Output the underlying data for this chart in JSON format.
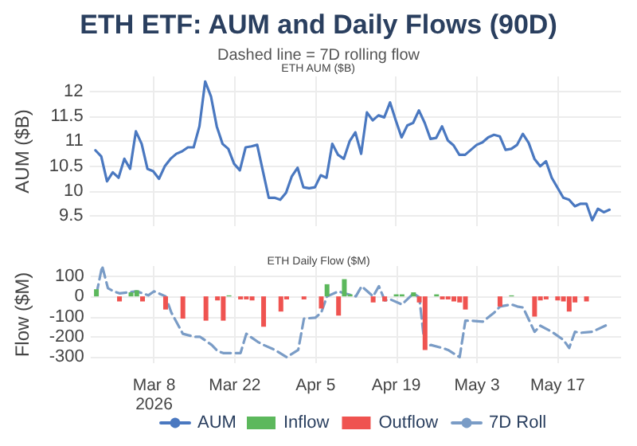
{
  "chart_data": [
    {
      "type": "line",
      "title": "ETH ETF: AUM and Daily Flows (90D)",
      "subtitle": "Dashed line = 7D rolling flow",
      "annotations": [
        "ETH AUM ($B)"
      ],
      "ylabel": "AUM ($B)",
      "x": [
        "2026-02-26",
        "2026-02-27",
        "2026-02-28",
        "2026-03-01",
        "2026-03-02",
        "2026-03-03",
        "2026-03-04",
        "2026-03-05",
        "2026-03-06",
        "2026-03-07",
        "2026-03-08",
        "2026-03-09",
        "2026-03-10",
        "2026-03-11",
        "2026-03-12",
        "2026-03-13",
        "2026-03-14",
        "2026-03-15",
        "2026-03-16",
        "2026-03-17",
        "2026-03-18",
        "2026-03-19",
        "2026-03-20",
        "2026-03-21",
        "2026-03-22",
        "2026-03-23",
        "2026-03-24",
        "2026-03-25",
        "2026-03-26",
        "2026-03-27",
        "2026-03-28",
        "2026-03-29",
        "2026-03-30",
        "2026-03-31",
        "2026-04-01",
        "2026-04-02",
        "2026-04-03",
        "2026-04-04",
        "2026-04-05",
        "2026-04-06",
        "2026-04-07",
        "2026-04-08",
        "2026-04-09",
        "2026-04-10",
        "2026-04-11",
        "2026-04-12",
        "2026-04-13",
        "2026-04-14",
        "2026-04-15",
        "2026-04-16",
        "2026-04-17",
        "2026-04-18",
        "2026-04-19",
        "2026-04-20",
        "2026-04-21",
        "2026-04-22",
        "2026-04-23",
        "2026-04-24",
        "2026-04-25",
        "2026-04-26",
        "2026-04-27",
        "2026-04-28",
        "2026-04-29",
        "2026-04-30",
        "2026-05-01",
        "2026-05-02",
        "2026-05-03",
        "2026-05-04",
        "2026-05-05",
        "2026-05-06",
        "2026-05-07",
        "2026-05-08",
        "2026-05-09",
        "2026-05-10",
        "2026-05-11",
        "2026-05-12",
        "2026-05-13",
        "2026-05-14",
        "2026-05-15",
        "2026-05-16",
        "2026-05-17",
        "2026-05-18",
        "2026-05-19",
        "2026-05-20",
        "2026-05-21",
        "2026-05-22",
        "2026-05-23",
        "2026-05-24",
        "2026-05-25",
        "2026-05-26"
      ],
      "series": [
        {
          "name": "AUM",
          "color": "#4a78c0",
          "values": [
            10.82,
            10.7,
            10.2,
            10.38,
            10.27,
            10.65,
            10.45,
            11.2,
            10.95,
            10.45,
            10.4,
            10.25,
            10.5,
            10.65,
            10.75,
            10.8,
            10.88,
            10.88,
            11.3,
            12.2,
            11.9,
            11.3,
            10.95,
            10.85,
            10.55,
            10.42,
            10.88,
            10.9,
            10.93,
            10.4,
            9.87,
            9.87,
            9.83,
            9.97,
            10.3,
            10.47,
            10.08,
            10.06,
            10.08,
            10.32,
            10.27,
            10.95,
            10.73,
            10.65,
            11.0,
            11.18,
            10.75,
            11.58,
            11.42,
            11.52,
            11.48,
            11.78,
            11.42,
            11.08,
            11.32,
            11.37,
            11.62,
            11.37,
            11.05,
            11.07,
            11.3,
            11.02,
            10.92,
            10.73,
            10.73,
            10.83,
            10.93,
            10.98,
            11.08,
            11.13,
            11.1,
            10.83,
            10.85,
            10.93,
            11.15,
            10.97,
            10.65,
            10.5,
            10.6,
            10.27,
            10.07,
            9.87,
            9.83,
            9.7,
            9.75,
            9.75,
            9.42,
            9.65,
            9.58,
            9.63
          ]
        }
      ],
      "xlim": [
        "2026-02-25",
        "2026-05-28"
      ],
      "xticks": [
        {
          "value": "2026-03-08",
          "label": null
        },
        {
          "value": "2026-03-22",
          "label": null
        },
        {
          "value": "2026-04-05",
          "label": null
        },
        {
          "value": "2026-04-19",
          "label": null
        },
        {
          "value": "2026-05-03",
          "label": null
        },
        {
          "value": "2026-05-17",
          "label": null
        }
      ],
      "ylim": [
        9.3,
        12.3
      ],
      "yticks": [
        9.5,
        10,
        10.5,
        11,
        11.5,
        12
      ],
      "tick_labels": "y",
      "grid": true,
      "legend": "bottom",
      "marker": "none",
      "line_style": "solid"
    },
    {
      "type": "bar",
      "title": "ETH Daily Flow ($M)",
      "ylabel": "Flow ($M)",
      "series": [
        {
          "name": "Inflow",
          "color": "#5cb85c",
          "x": [
            "2026-02-26",
            "2026-03-04",
            "2026-03-05",
            "2026-03-21",
            "2026-04-07",
            "2026-04-10",
            "2026-04-11",
            "2026-04-19",
            "2026-04-20",
            "2026-04-22",
            "2026-04-26",
            "2026-05-09"
          ],
          "values": [
            35,
            20,
            30,
            5,
            60,
            85,
            10,
            10,
            10,
            20,
            10,
            5
          ]
        },
        {
          "name": "Outflow",
          "color": "#ef5350",
          "x": [
            "2026-03-02",
            "2026-03-06",
            "2026-03-10",
            "2026-03-13",
            "2026-03-17",
            "2026-03-19",
            "2026-03-20",
            "2026-03-23",
            "2026-03-24",
            "2026-03-25",
            "2026-03-27",
            "2026-03-30",
            "2026-03-31",
            "2026-04-03",
            "2026-04-06",
            "2026-04-09",
            "2026-04-15",
            "2026-04-17",
            "2026-04-23",
            "2026-04-24",
            "2026-04-27",
            "2026-04-28",
            "2026-04-29",
            "2026-04-30",
            "2026-05-01",
            "2026-05-07",
            "2026-05-13",
            "2026-05-14",
            "2026-05-15",
            "2026-05-17",
            "2026-05-18",
            "2026-05-19",
            "2026-05-20",
            "2026-05-22"
          ],
          "values": [
            -25,
            -25,
            -65,
            -110,
            -120,
            -20,
            -120,
            -15,
            -15,
            -20,
            -150,
            -75,
            -15,
            -15,
            -60,
            -95,
            -30,
            -25,
            -30,
            -265,
            -15,
            -15,
            -25,
            -30,
            -65,
            -50,
            -100,
            -20,
            -15,
            -20,
            -25,
            -75,
            -30,
            -25
          ]
        },
        {
          "name": "7D Roll",
          "type": "line",
          "line_style": "dashed",
          "color": "#7a9cc6",
          "x": [
            "2026-02-26",
            "2026-02-27",
            "2026-02-28",
            "2026-03-01",
            "2026-03-02",
            "2026-03-05",
            "2026-03-07",
            "2026-03-08",
            "2026-03-10",
            "2026-03-11",
            "2026-03-13",
            "2026-03-15",
            "2026-03-16",
            "2026-03-18",
            "2026-03-19",
            "2026-03-20",
            "2026-03-23",
            "2026-03-24",
            "2026-03-26",
            "2026-03-27",
            "2026-03-29",
            "2026-03-31",
            "2026-04-02",
            "2026-04-03",
            "2026-04-05",
            "2026-04-06",
            "2026-04-07",
            "2026-04-09",
            "2026-04-10",
            "2026-04-12",
            "2026-04-13",
            "2026-04-14",
            "2026-04-15",
            "2026-04-16",
            "2026-04-17",
            "2026-04-18",
            "2026-04-20",
            "2026-04-22",
            "2026-04-23",
            "2026-04-24",
            "2026-04-25",
            "2026-04-27",
            "2026-04-28",
            "2026-04-30",
            "2026-05-01",
            "2026-05-02",
            "2026-05-04",
            "2026-05-06",
            "2026-05-07",
            "2026-05-09",
            "2026-05-10",
            "2026-05-11",
            "2026-05-13",
            "2026-05-14",
            "2026-05-16",
            "2026-05-18",
            "2026-05-19",
            "2026-05-20",
            "2026-05-21",
            "2026-05-23",
            "2026-05-26"
          ],
          "values": [
            10,
            150,
            40,
            25,
            15,
            25,
            5,
            25,
            0,
            -80,
            -185,
            -200,
            -200,
            -240,
            -270,
            -280,
            -280,
            -185,
            -225,
            -240,
            -265,
            -300,
            -265,
            -110,
            -105,
            -80,
            0,
            25,
            15,
            0,
            50,
            25,
            0,
            50,
            -20,
            -15,
            -40,
            15,
            -5,
            -255,
            -240,
            -255,
            -265,
            -300,
            -120,
            -120,
            -125,
            -80,
            -50,
            -40,
            -50,
            -55,
            -175,
            -145,
            -175,
            -215,
            -255,
            -175,
            -180,
            -175,
            -135
          ]
        }
      ],
      "xlim": [
        "2026-02-25",
        "2026-05-28"
      ],
      "xticks": [
        {
          "value": "2026-03-08",
          "label": "Mar 8\n2026"
        },
        {
          "value": "2026-03-22",
          "label": "Mar 22"
        },
        {
          "value": "2026-04-05",
          "label": "Apr 5"
        },
        {
          "value": "2026-04-19",
          "label": "Apr 19"
        },
        {
          "value": "2026-05-03",
          "label": "May 3"
        },
        {
          "value": "2026-05-17",
          "label": "May 17"
        }
      ],
      "ylim": [
        -330,
        150
      ],
      "yticks": [
        -300,
        -200,
        -100,
        0,
        100
      ],
      "grid": true,
      "legend": "bottom",
      "marker": "none"
    }
  ]
}
